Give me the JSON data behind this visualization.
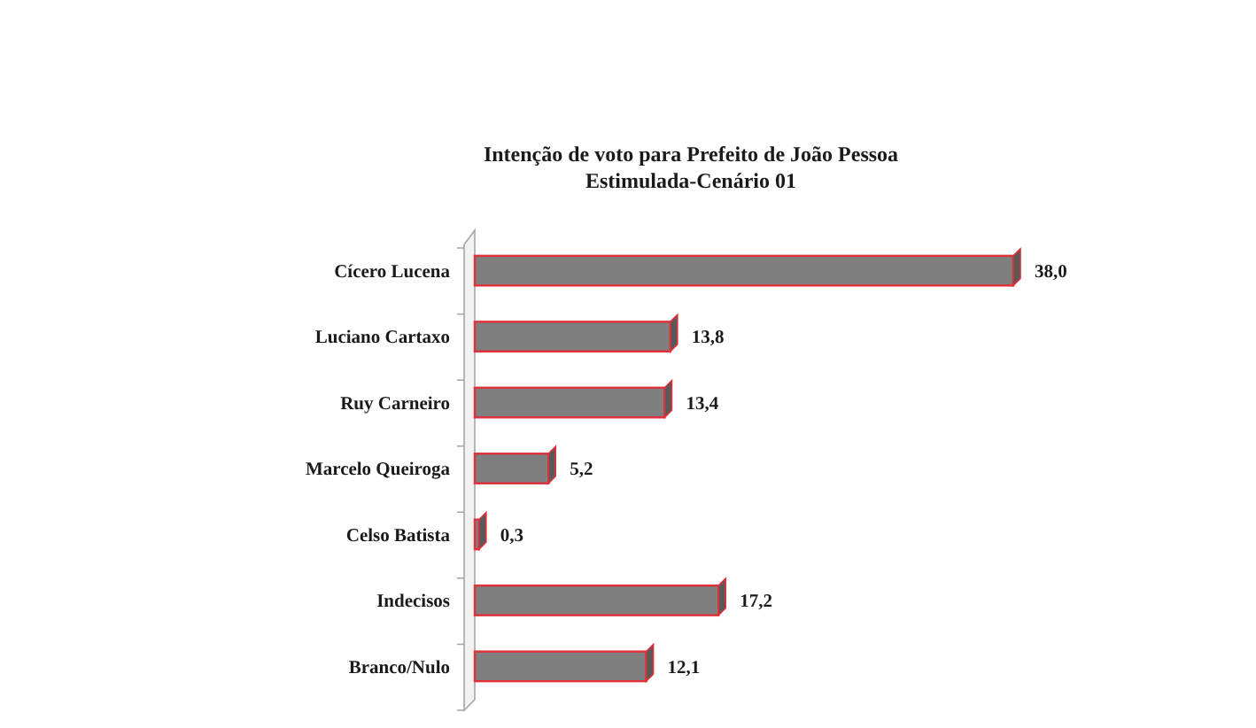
{
  "chart_data": {
    "type": "bar",
    "orientation": "horizontal",
    "title": "Intenção de voto para Prefeito de João Pessoa",
    "subtitle": "Estimulada-Cenário 01",
    "categories": [
      "Cícero Lucena",
      "Luciano Cartaxo",
      "Ruy Carneiro",
      "Marcelo Queiroga",
      "Celso Batista",
      "Indecisos",
      "Branco/Nulo"
    ],
    "values": [
      38.0,
      13.8,
      13.4,
      5.2,
      0.3,
      17.2,
      12.1
    ],
    "color": "#7f7f7f",
    "value_labels": [
      "38,0",
      "13,8",
      "13,4",
      "5,2",
      "0,3",
      "17,2",
      "12,1"
    ]
  }
}
